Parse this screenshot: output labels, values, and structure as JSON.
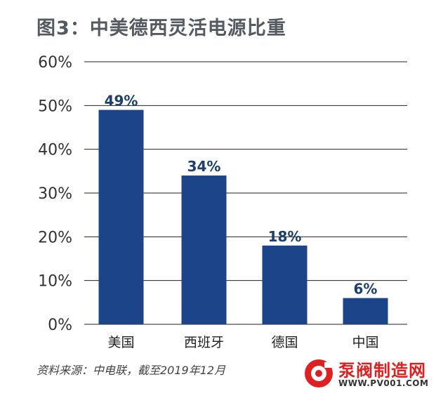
{
  "title": "图3：中美德西灵活电源比重",
  "source": "资料来源：中电联，截至2019年12月",
  "watermark": {
    "brand": "泵阀制造网",
    "url": "WWW.PV001.COM"
  },
  "colors": {
    "bar": "#1c4488",
    "label": "#1c3f6e",
    "grid": "#222222",
    "axis_text": "#333333"
  },
  "chart_data": {
    "type": "bar",
    "categories": [
      "美国",
      "西班牙",
      "德国",
      "中国"
    ],
    "values": [
      49,
      34,
      18,
      6
    ],
    "data_labels": [
      "49%",
      "34%",
      "18%",
      "6%"
    ],
    "title": "图3：中美德西灵活电源比重",
    "xlabel": "",
    "ylabel": "",
    "ylim": [
      0,
      60
    ],
    "yticks": [
      0,
      10,
      20,
      30,
      40,
      50,
      60
    ],
    "ytick_labels": [
      "0%",
      "10%",
      "20%",
      "30%",
      "40%",
      "50%",
      "60%"
    ],
    "grid": true,
    "legend": "none"
  }
}
